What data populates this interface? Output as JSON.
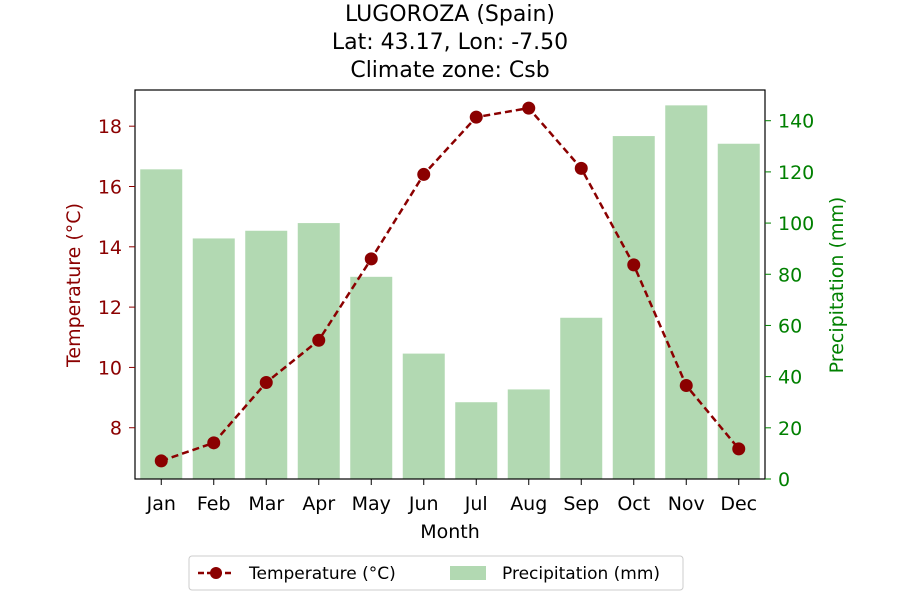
{
  "chart_data": {
    "type": "bar",
    "title_lines": [
      "LUGOROZA (Spain)",
      "Lat: 43.17, Lon: -7.50",
      "Climate zone: Csb"
    ],
    "xlabel": "Month",
    "ylabel_left": "Temperature (°C)",
    "ylabel_right": "Precipitation (mm)",
    "categories": [
      "Jan",
      "Feb",
      "Mar",
      "Apr",
      "May",
      "Jun",
      "Jul",
      "Aug",
      "Sep",
      "Oct",
      "Nov",
      "Dec"
    ],
    "series": [
      {
        "name": "Temperature (°C)",
        "type": "line",
        "axis": "left",
        "color": "#8b0000",
        "values": [
          6.9,
          7.5,
          9.5,
          10.9,
          13.6,
          16.4,
          18.3,
          18.6,
          16.6,
          13.4,
          9.4,
          7.3
        ]
      },
      {
        "name": "Precipitation (mm)",
        "type": "bar",
        "axis": "right",
        "color": "#b2d9b2",
        "values": [
          121,
          94,
          97,
          100,
          79,
          49,
          30,
          35,
          63,
          134,
          146,
          131
        ]
      }
    ],
    "ylim_left": [
      6.3,
      19.2
    ],
    "ylim_right": [
      0,
      152
    ],
    "yticks_left": [
      "8",
      "10",
      "12",
      "14",
      "16",
      "18"
    ],
    "yticks_right": [
      "0",
      "20",
      "40",
      "60",
      "80",
      "100",
      "120",
      "140"
    ],
    "left_axis_color": "#8b0000",
    "right_axis_color": "#008000",
    "grid": false,
    "legend_position": "bottom-center"
  }
}
